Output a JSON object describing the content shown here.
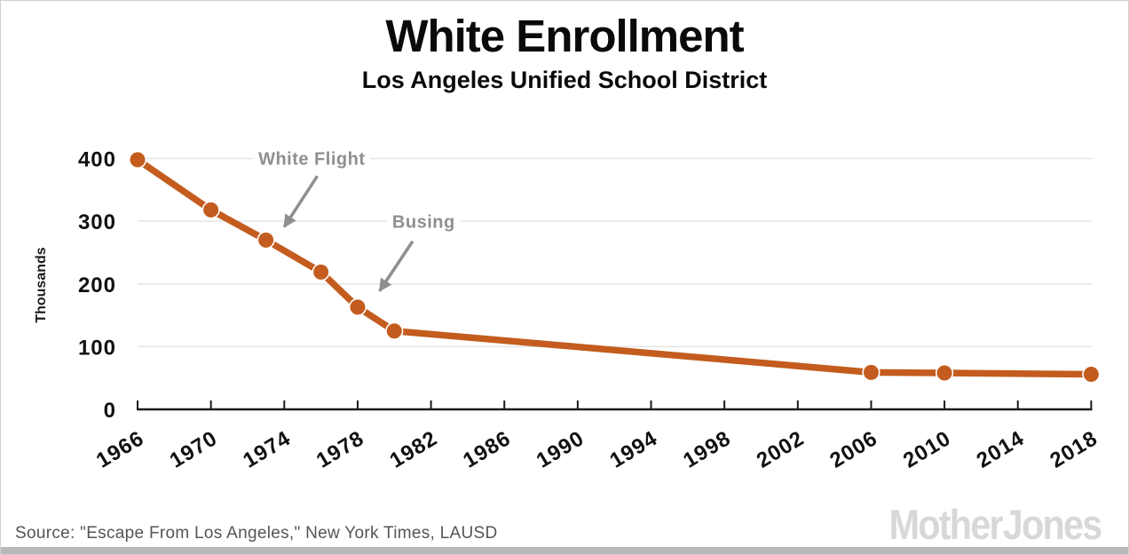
{
  "page": {
    "source_credit": "Source: \"Escape From Los Angeles,\" New York Times, LAUSD",
    "logo_text": "Mother Jones"
  },
  "chart_data": {
    "type": "line",
    "title": "White Enrollment",
    "subtitle": "Los Angeles Unified School District",
    "ylabel": "Thousands",
    "xlim": [
      1966,
      2018
    ],
    "ylim": [
      0,
      400
    ],
    "xticks": [
      1966,
      1970,
      1974,
      1978,
      1982,
      1986,
      1990,
      1994,
      1998,
      2002,
      2006,
      2010,
      2014,
      2018
    ],
    "yticks": [
      0,
      100,
      200,
      300,
      400
    ],
    "grid": "horizontal",
    "legend": "none",
    "series": [
      {
        "name": "White enrollment",
        "x": [
          1966,
          1970,
          1973,
          1976,
          1978,
          1980,
          2006,
          2010,
          2018
        ],
        "y": [
          398,
          318,
          270,
          219,
          163,
          125,
          59,
          58,
          56
        ]
      }
    ],
    "annotations": [
      {
        "label": "White Flight",
        "text_x": 1975.5,
        "text_y": 398,
        "arrow_from_x": 1975.8,
        "arrow_from_y": 372,
        "arrow_to_x": 1974.0,
        "arrow_to_y": 291
      },
      {
        "label": "Busing",
        "text_x": 1981.6,
        "text_y": 297,
        "arrow_from_x": 1981.0,
        "arrow_from_y": 268,
        "arrow_to_x": 1979.2,
        "arrow_to_y": 189
      }
    ],
    "colors": {
      "line": "#c35c1e",
      "grid": "#e4e4e4",
      "axis": "#1a1a1a",
      "annotation": "#8f8f8f",
      "source_text": "#555555",
      "logo": "#d8d8d8",
      "bottom_bar": "#b9b9b9",
      "border": "#cfcfcf"
    }
  }
}
